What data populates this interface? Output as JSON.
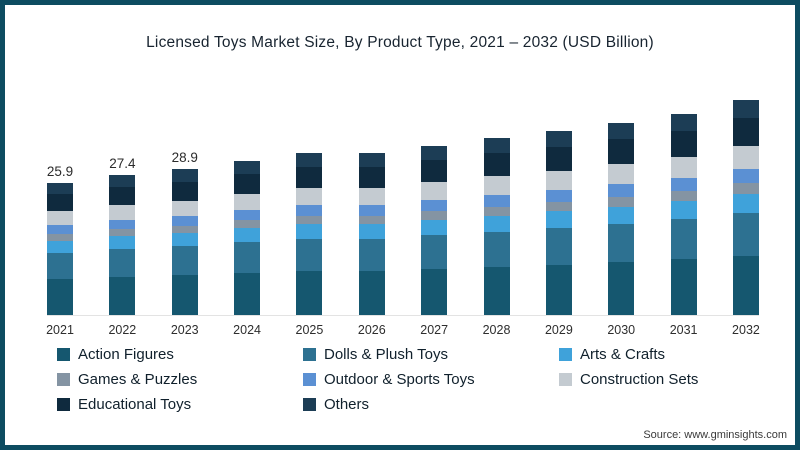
{
  "page": {
    "title": "Licensed Toys Market Size, By Product Type, 2021 – 2032 (USD Billion)",
    "source": "Source: www.gminsights.com",
    "accent_color": "#0d4c61",
    "background_color": "#ffffff"
  },
  "chart_data": {
    "type": "bar",
    "stacked": true,
    "title": "Licensed Toys Market Size, By Product Type, 2021 – 2032 (USD Billion)",
    "xlabel": "",
    "ylabel": "USD Billion",
    "ylim": [
      0,
      45
    ],
    "grid": false,
    "legend_position": "bottom",
    "categories": [
      "2021",
      "2022",
      "2023",
      "2024",
      "2025",
      "2026",
      "2027",
      "2028",
      "2029",
      "2030",
      "2031",
      "2032"
    ],
    "totals": [
      25.9,
      27.4,
      28.9,
      30.3,
      31.9,
      31.8,
      33.5,
      34.9,
      36.3,
      38.2,
      40.2,
      42.6
    ],
    "value_labels": [
      "25.9",
      "27.4",
      "28.9",
      "",
      "",
      "",
      "",
      "",
      "",
      "",
      "",
      ""
    ],
    "series": [
      {
        "name": "Action Figures",
        "color": "#15576f",
        "values": [
          7.1,
          7.5,
          7.9,
          8.3,
          8.8,
          8.7,
          9.2,
          9.6,
          10.0,
          10.5,
          11.1,
          11.7
        ]
      },
      {
        "name": "Dolls & Plush Toys",
        "color": "#2d7191",
        "values": [
          5.2,
          5.5,
          5.8,
          6.1,
          6.4,
          6.4,
          6.7,
          7.0,
          7.3,
          7.6,
          8.0,
          8.5
        ]
      },
      {
        "name": "Arts & Crafts",
        "color": "#3fa2da",
        "values": [
          2.3,
          2.5,
          2.6,
          2.7,
          2.9,
          2.9,
          3.0,
          3.1,
          3.3,
          3.4,
          3.6,
          3.8
        ]
      },
      {
        "name": "Games & Puzzles",
        "color": "#8494a3",
        "values": [
          1.3,
          1.4,
          1.4,
          1.5,
          1.6,
          1.6,
          1.7,
          1.7,
          1.8,
          1.9,
          2.0,
          2.1
        ]
      },
      {
        "name": "Outdoor & Sports Toys",
        "color": "#5b90d3",
        "values": [
          1.7,
          1.8,
          1.9,
          2.0,
          2.1,
          2.1,
          2.2,
          2.3,
          2.4,
          2.5,
          2.6,
          2.8
        ]
      },
      {
        "name": "Construction Sets",
        "color": "#c4cbd1",
        "values": [
          2.7,
          2.9,
          3.0,
          3.2,
          3.3,
          3.3,
          3.5,
          3.7,
          3.8,
          4.0,
          4.2,
          4.5
        ]
      },
      {
        "name": "Educational Toys",
        "color": "#0f2a3e",
        "values": [
          3.4,
          3.6,
          3.8,
          3.9,
          4.1,
          4.1,
          4.4,
          4.5,
          4.7,
          5.0,
          5.2,
          5.6
        ]
      },
      {
        "name": "Others",
        "color": "#1c3d55",
        "values": [
          2.2,
          2.3,
          2.5,
          2.6,
          2.7,
          2.7,
          2.8,
          3.0,
          3.1,
          3.2,
          3.4,
          3.6
        ]
      }
    ]
  }
}
